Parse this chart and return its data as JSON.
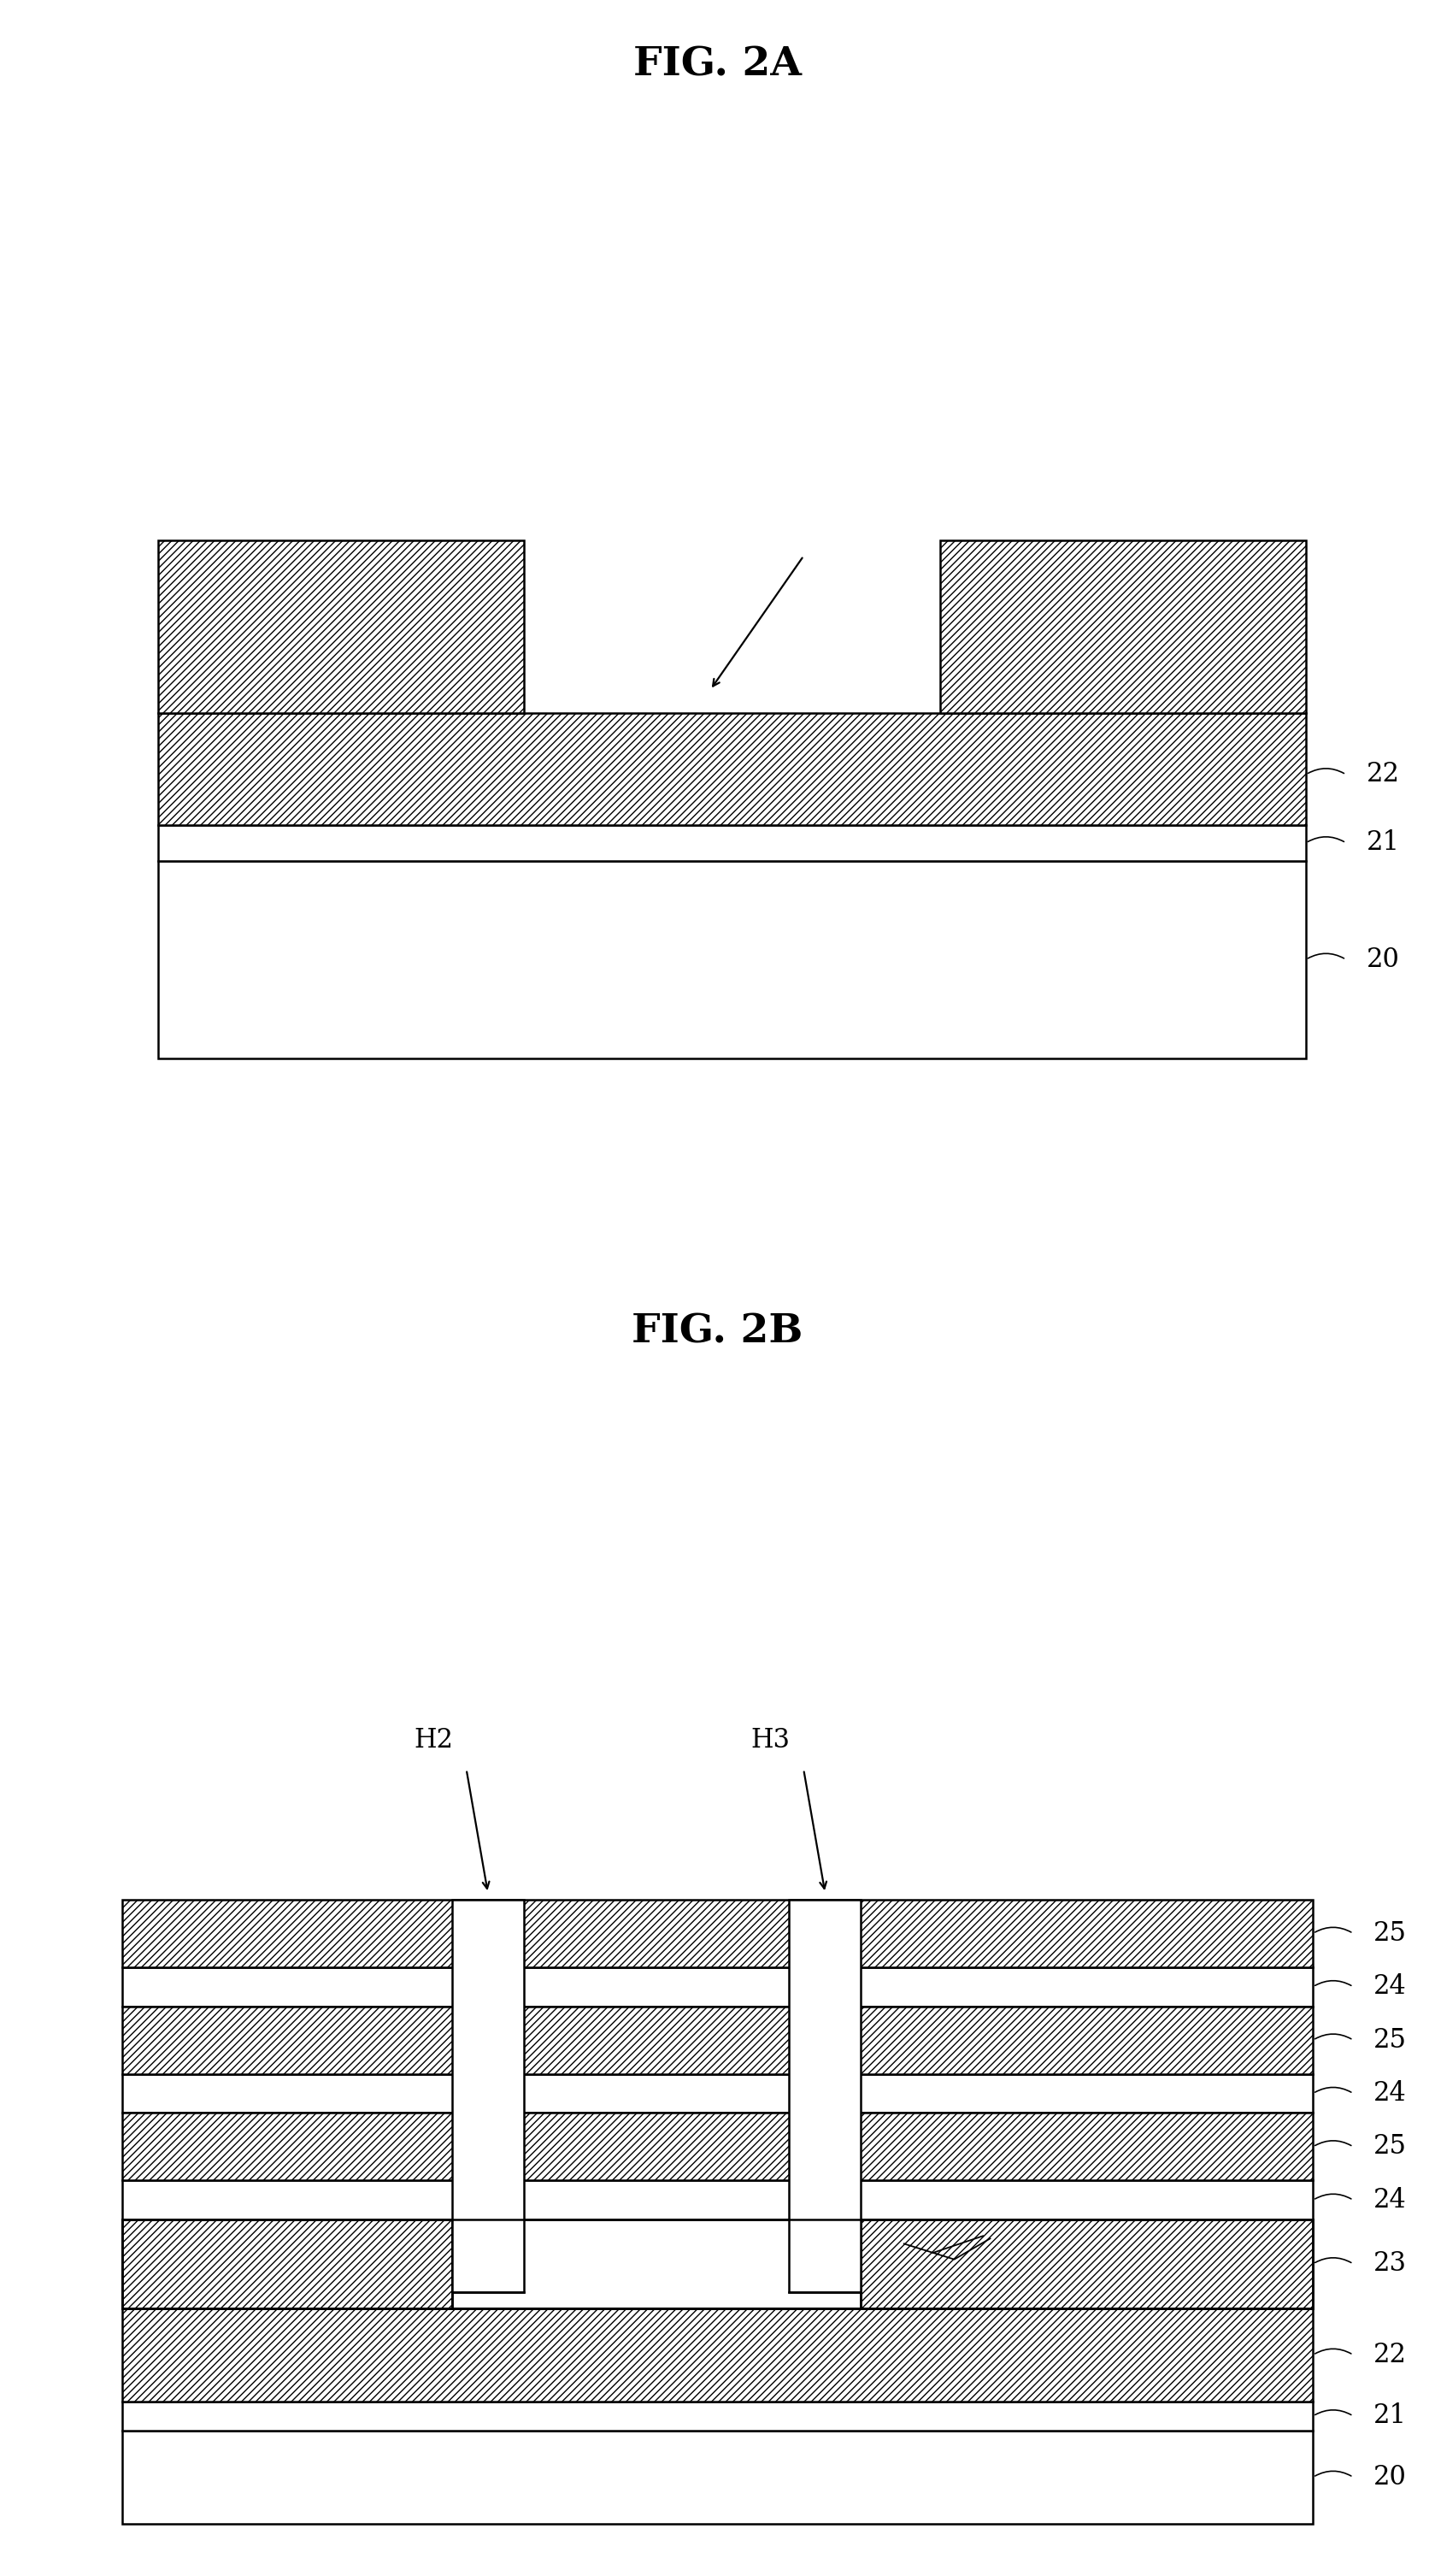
{
  "fig_width": 16.79,
  "fig_height": 30.13,
  "background_color": "#ffffff",
  "title_2a": "FIG. 2A",
  "title_2b": "FIG. 2B",
  "label_fontsize": 22,
  "title_fontsize": 34,
  "lw": 1.8
}
